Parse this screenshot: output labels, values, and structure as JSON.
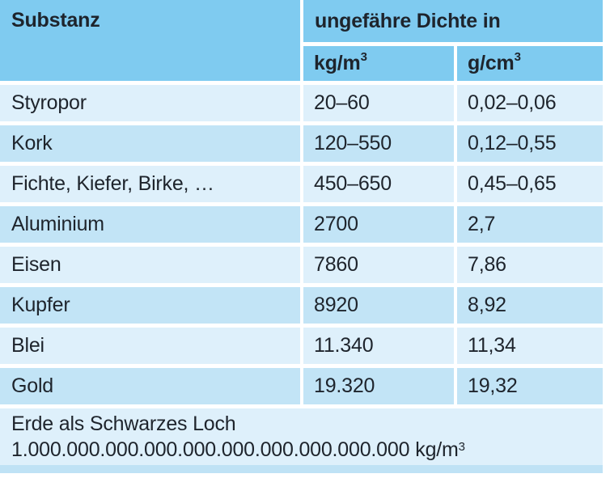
{
  "chart_data": {
    "type": "table",
    "title": "",
    "header": {
      "substance_label": "Substanz",
      "density_group_label": "ungefähre Dichte in",
      "units": [
        {
          "base": "kg/m",
          "sup": "3"
        },
        {
          "base": "g/cm",
          "sup": "3"
        }
      ]
    },
    "rows": [
      {
        "substance": "Styropor",
        "kg_m3": "20–60",
        "g_cm3": "0,02–0,06"
      },
      {
        "substance": "Kork",
        "kg_m3": "120–550",
        "g_cm3": "0,12–0,55"
      },
      {
        "substance": "Fichte, Kiefer, Birke, …",
        "kg_m3": "450–650",
        "g_cm3": "0,45–0,65"
      },
      {
        "substance": "Aluminium",
        "kg_m3": "2700",
        "g_cm3": "2,7"
      },
      {
        "substance": "Eisen",
        "kg_m3": "7860",
        "g_cm3": "7,86"
      },
      {
        "substance": "Kupfer",
        "kg_m3": "8920",
        "g_cm3": "8,92"
      },
      {
        "substance": "Blei",
        "kg_m3": "11.340",
        "g_cm3": "11,34"
      },
      {
        "substance": "Gold",
        "kg_m3": "19.320",
        "g_cm3": "19,32"
      }
    ],
    "footer": {
      "line1": "Erde als Schwarzes Loch",
      "value": "1.000.000.000.000.000.000.000.000.000.000",
      "unit_base": "kg/m",
      "unit_sup": "3"
    },
    "layout_hints": {
      "row_striping": [
        "light",
        "medium"
      ],
      "gutter": "white",
      "grid": "off"
    }
  },
  "colors": {
    "header_bg": "#7fcbf0",
    "row_light": "#def0fb",
    "row_medium": "#c2e4f6",
    "frame": "#bfe2f5",
    "text": "#1e242c"
  }
}
